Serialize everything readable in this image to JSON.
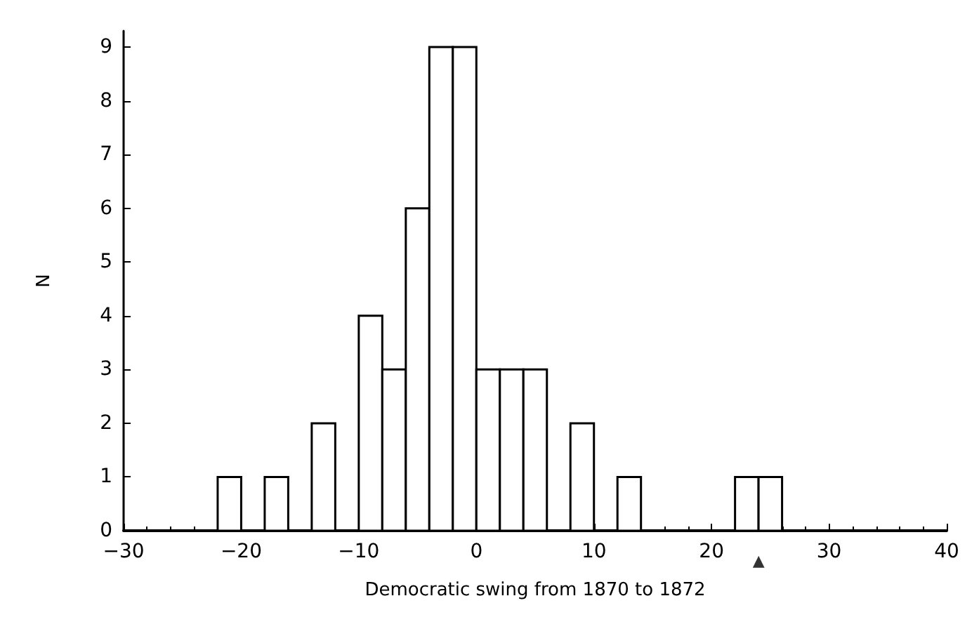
{
  "chart_data": {
    "type": "histogram",
    "xlabel": "Democratic swing from 1870 to 1872",
    "ylabel": "N",
    "bins": [
      -22,
      -20,
      -18,
      -16,
      -14,
      -12,
      -10,
      -8,
      -6,
      -4,
      -2,
      0,
      2,
      4,
      6,
      8,
      10,
      12,
      14,
      16,
      18,
      20,
      22,
      24,
      26
    ],
    "values": [
      1,
      0,
      1,
      0,
      2,
      0,
      4,
      3,
      6,
      9,
      9,
      3,
      3,
      3,
      0,
      2,
      0,
      1,
      0,
      0,
      0,
      0,
      1,
      1
    ],
    "color": "#ffffff",
    "xlim": [
      -30,
      40
    ],
    "xticks": [
      -30,
      -20,
      -10,
      0,
      10,
      20,
      30,
      40
    ],
    "ylim": [
      0,
      9.3
    ],
    "yticks": [
      0,
      1,
      2,
      3,
      4,
      5,
      6,
      7,
      8,
      9
    ],
    "grid": false,
    "annotations": [
      {
        "text": "▲",
        "x": 24,
        "y": 0
      }
    ]
  }
}
